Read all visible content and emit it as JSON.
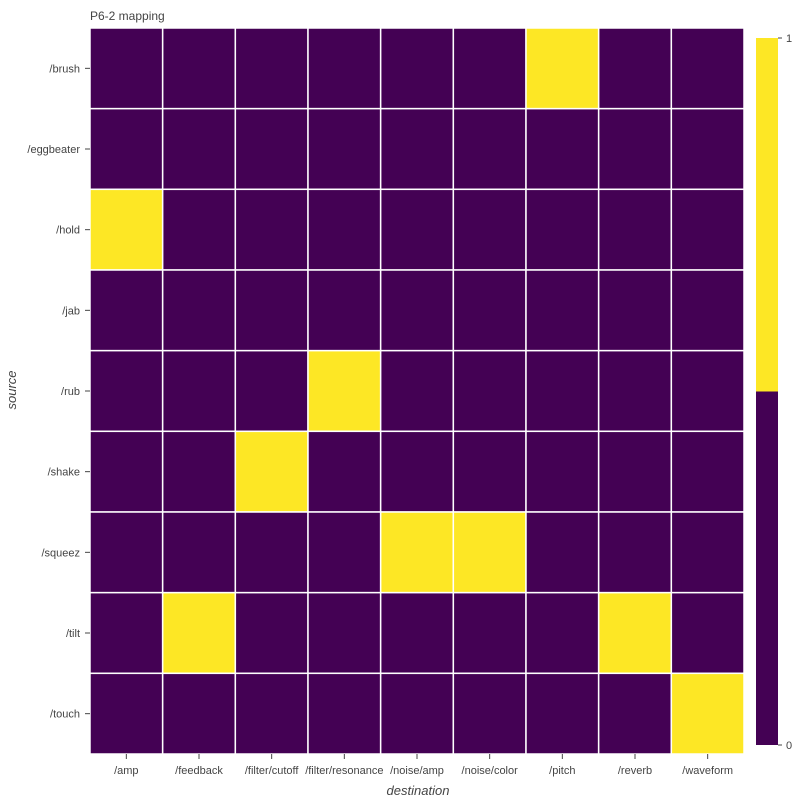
{
  "chart_data": {
    "type": "heatmap",
    "title": "P6-2 mapping",
    "xlabel": "destination",
    "ylabel": "source",
    "x_categories": [
      "/amp",
      "/feedback",
      "/filter/cutoff",
      "/filter/resonance",
      "/noise/amp",
      "/noise/color",
      "/pitch",
      "/reverb",
      "/waveform"
    ],
    "y_categories": [
      "/brush",
      "/eggbeater",
      "/hold",
      "/jab",
      "/rub",
      "/shake",
      "/squeez",
      "/tilt",
      "/touch"
    ],
    "values": [
      [
        0,
        0,
        0,
        0,
        0,
        0,
        1,
        0,
        0
      ],
      [
        0,
        0,
        0,
        0,
        0,
        0,
        0,
        0,
        0
      ],
      [
        1,
        0,
        0,
        0,
        0,
        0,
        0,
        0,
        0
      ],
      [
        0,
        0,
        0,
        0,
        0,
        0,
        0,
        0,
        0
      ],
      [
        0,
        0,
        0,
        1,
        0,
        0,
        0,
        0,
        0
      ],
      [
        0,
        0,
        1,
        0,
        0,
        0,
        0,
        0,
        0
      ],
      [
        0,
        0,
        0,
        0,
        1,
        1,
        0,
        0,
        0
      ],
      [
        0,
        1,
        0,
        0,
        0,
        0,
        0,
        1,
        0
      ],
      [
        0,
        0,
        0,
        0,
        0,
        0,
        0,
        0,
        1
      ]
    ],
    "colorbar": {
      "min": 0,
      "max": 1,
      "min_label": "0",
      "max_label": "1"
    },
    "colors": {
      "low": "#440154",
      "high": "#fde725",
      "grid": "#ffffff"
    },
    "legend_placement": "right"
  }
}
